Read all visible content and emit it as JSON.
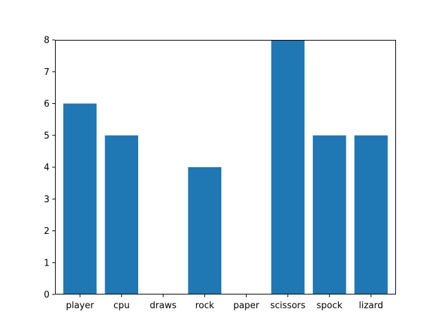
{
  "chart_data": {
    "type": "bar",
    "title": "",
    "xlabel": "",
    "ylabel": "",
    "categories": [
      "player",
      "cpu",
      "draws",
      "rock",
      "paper",
      "scissors",
      "spock",
      "lizard"
    ],
    "values": [
      6,
      5,
      0,
      4,
      0,
      8,
      5,
      5
    ],
    "ylim": [
      0,
      8
    ],
    "yticks": [
      0,
      1,
      2,
      3,
      4,
      5,
      6,
      7,
      8
    ],
    "grid": false,
    "legend": "none",
    "bar_color": "#1f77b4"
  }
}
